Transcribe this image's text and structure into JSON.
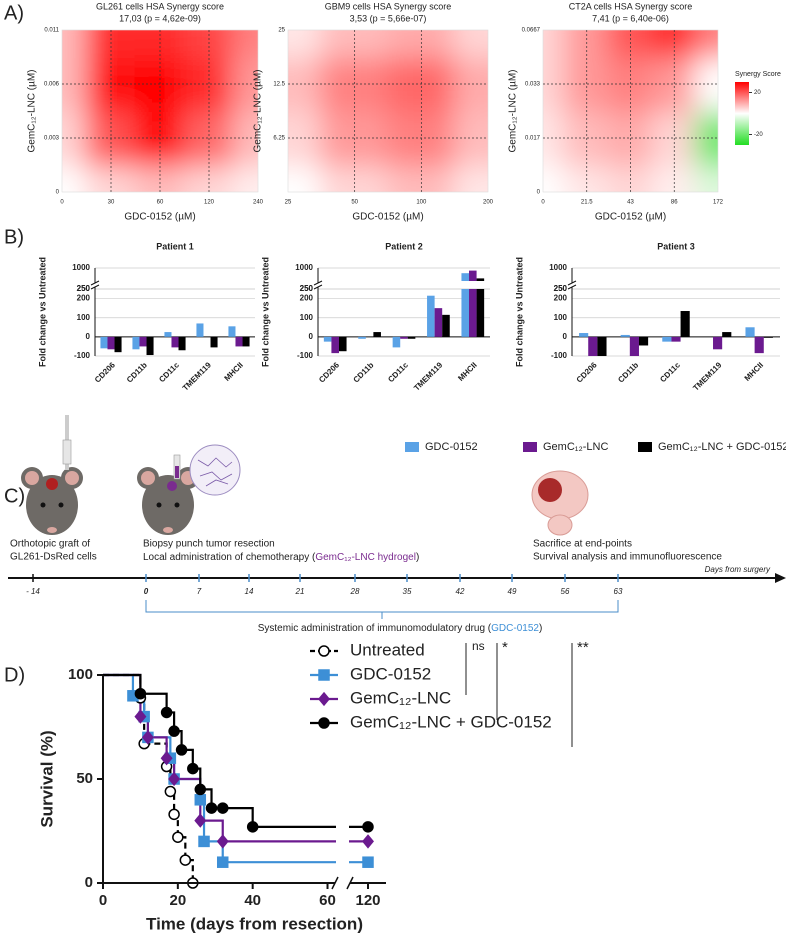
{
  "panel_labels": [
    "A)",
    "B)",
    "C)",
    "D)"
  ],
  "chart_data": [
    {
      "type": "heatmap",
      "x_label": "GDC-0152 (µM)",
      "y_label": "GemC₁₂-LNC (µM)",
      "colorbar": {
        "title": "Synergy Score",
        "min": -30,
        "max": 30,
        "ticks": [
          20,
          -20
        ],
        "positive_color": "#ff0000",
        "negative_color": "#22dd22"
      },
      "facets": [
        {
          "title": "GL261 cells HSA Synergy score",
          "subtitle": "17,03 (p = 4,62e-09)",
          "x": [
            "0",
            "30",
            "60",
            "120",
            "240"
          ],
          "y": [
            "0",
            "0.003",
            "0.006",
            "0.011"
          ],
          "values": [
            [
              0,
              5,
              8,
              5,
              2
            ],
            [
              5,
              20,
              30,
              18,
              8
            ],
            [
              8,
              28,
              30,
              25,
              12
            ],
            [
              8,
              25,
              25,
              22,
              15
            ]
          ]
        },
        {
          "title": "GBM9 cells HSA Synergy score",
          "subtitle": "3,53 (p = 5,66e-07)",
          "x": [
            "25",
            "50",
            "100",
            "200"
          ],
          "y": [
            null,
            "6.25",
            "12.5",
            "25"
          ],
          "values": [
            [
              0,
              5,
              8,
              3
            ],
            [
              5,
              12,
              15,
              8
            ],
            [
              8,
              15,
              18,
              10
            ],
            [
              3,
              8,
              10,
              5
            ]
          ]
        },
        {
          "title": "CT2A cells HSA Synergy score",
          "subtitle": "7,41 (p = 6,40e-06)",
          "x": [
            "0",
            "21.5",
            "43",
            "86",
            "172"
          ],
          "y": [
            "0",
            "0.017",
            "0.033",
            "0.0667"
          ],
          "values": [
            [
              0,
              3,
              5,
              2,
              -5
            ],
            [
              3,
              8,
              10,
              5,
              -20
            ],
            [
              5,
              12,
              15,
              12,
              0
            ],
            [
              5,
              12,
              20,
              25,
              15
            ]
          ]
        }
      ]
    },
    {
      "type": "bar",
      "y_label": "Fold change vs Untreated",
      "categories": [
        "CD206",
        "CD11b",
        "CD11c",
        "TMEM119",
        "MHCII"
      ],
      "series": [
        {
          "name": "GDC-0152",
          "color": "#5aa2e6"
        },
        {
          "name": "GemC₁₂-LNC",
          "color": "#6b1a8f"
        },
        {
          "name": "GemC₁₂-LNC + GDC-0152",
          "color": "#000000"
        }
      ],
      "ylim": [
        -100,
        250
      ],
      "yticks": [
        -100,
        0,
        100,
        200,
        250
      ],
      "ylim_upper": [
        250,
        1000
      ],
      "yticks_upper": [
        250,
        1000
      ],
      "facets": [
        {
          "title": "Patient 1",
          "values": [
            [
              -60,
              -65,
              25,
              70,
              55
            ],
            [
              -65,
              -50,
              -55,
              0,
              -50
            ],
            [
              -80,
              -95,
              -70,
              -55,
              -50
            ]
          ]
        },
        {
          "title": "Patient 2",
          "values": [
            [
              -25,
              -10,
              -55,
              215,
              700
            ],
            [
              -85,
              0,
              -10,
              150,
              850
            ],
            [
              -75,
              25,
              -10,
              115,
              400
            ]
          ]
        },
        {
          "title": "Patient 3",
          "values": [
            [
              20,
              10,
              -25,
              0,
              50
            ],
            [
              -100,
              -100,
              -25,
              -65,
              -85
            ],
            [
              -100,
              -45,
              135,
              25,
              -5
            ]
          ]
        }
      ]
    },
    {
      "type": "step",
      "x_label": "Time (days from resection)",
      "y_label": "Survival (%)",
      "xlim": [
        0,
        125
      ],
      "x_break": [
        62,
        115
      ],
      "xticks": [
        0,
        20,
        40,
        60,
        120
      ],
      "ylim": [
        0,
        100
      ],
      "yticks": [
        0,
        50,
        100
      ],
      "significance": [
        "ns",
        "*",
        "**"
      ],
      "series": [
        {
          "name": "Untreated",
          "color": "#000000",
          "marker": "open-circle",
          "dashed": true,
          "x": [
            0,
            10,
            11,
            17,
            18,
            19,
            20,
            22,
            24
          ],
          "values": [
            100,
            89,
            67,
            56,
            44,
            33,
            22,
            11,
            0
          ]
        },
        {
          "name": "GDC-0152",
          "color": "#3d8fd6",
          "marker": "square",
          "dashed": false,
          "x": [
            0,
            8,
            11,
            12,
            18,
            19,
            26,
            27,
            32,
            120
          ],
          "values": [
            100,
            90,
            80,
            70,
            60,
            50,
            40,
            20,
            10,
            10
          ]
        },
        {
          "name": "GemC₁₂-LNC",
          "color": "#6b1a8f",
          "marker": "diamond",
          "dashed": false,
          "x": [
            0,
            10,
            12,
            17,
            19,
            26,
            32,
            120
          ],
          "values": [
            100,
            80,
            70,
            60,
            50,
            30,
            20,
            20
          ]
        },
        {
          "name": "GemC₁₂-LNC + GDC-0152",
          "color": "#000000",
          "marker": "circle",
          "dashed": false,
          "x": [
            0,
            10,
            17,
            19,
            21,
            24,
            26,
            29,
            32,
            40,
            120
          ],
          "values": [
            100,
            91,
            82,
            73,
            64,
            55,
            45,
            36,
            36,
            27,
            27
          ]
        }
      ]
    }
  ],
  "timeline": {
    "graft": [
      "Orthotopic graft of",
      "GL261-DsRed cells"
    ],
    "resection": "Biopsy punch tumor resection",
    "chemo": [
      "Local administration of chemotherapy (",
      "GemC₁₂-LNC hydrogel",
      ")"
    ],
    "sacrifice": [
      "Sacrifice at end-points",
      "Survival analysis and immunofluorescence"
    ],
    "axis_label": "Days from surgery",
    "ticks": [
      "- 14",
      "0",
      "7",
      "14",
      "21",
      "28",
      "35",
      "42",
      "49",
      "56",
      "63"
    ],
    "systemic": [
      "Systemic administration of immunomodulatory drug (",
      "GDC-0152",
      ")"
    ]
  }
}
